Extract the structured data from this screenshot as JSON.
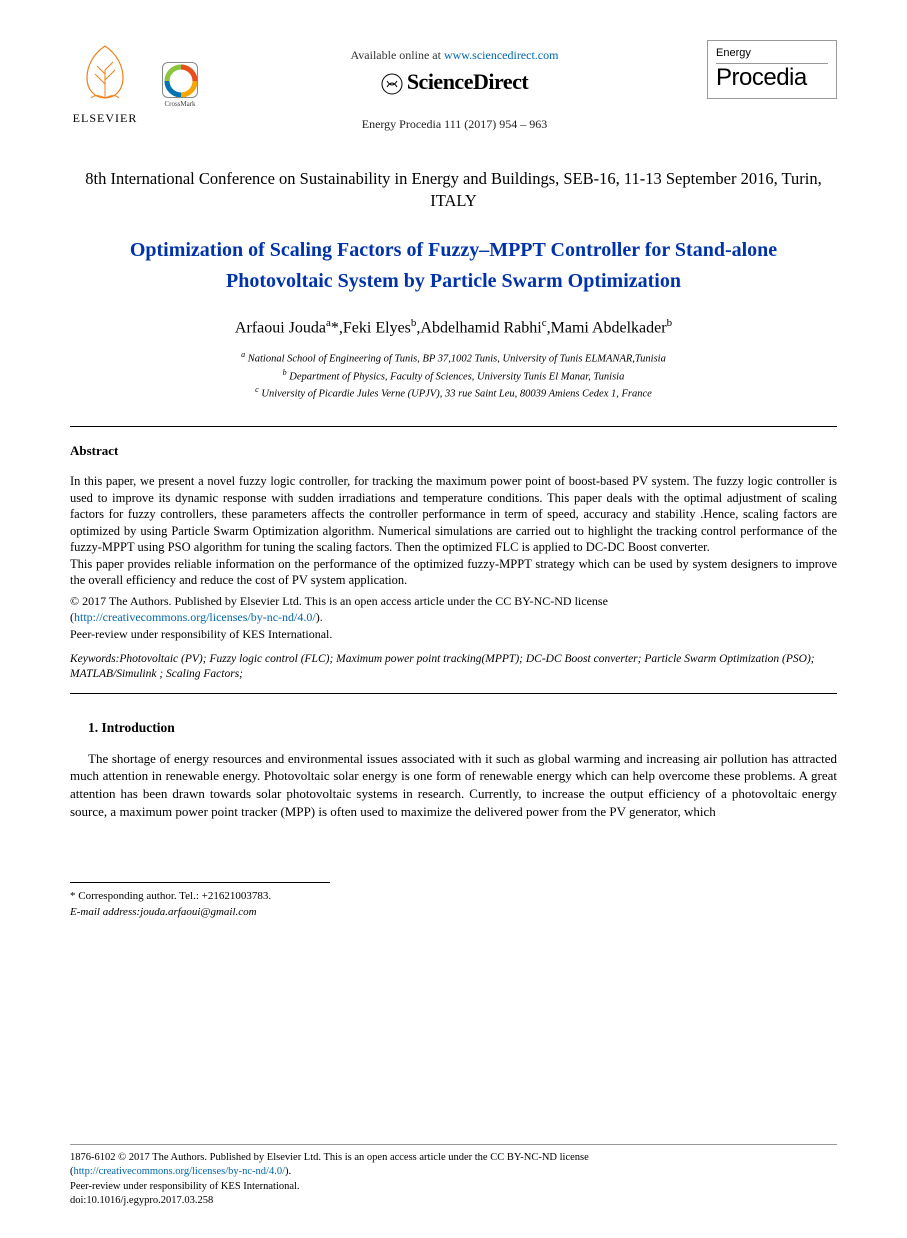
{
  "header": {
    "elsevier_label": "ELSEVIER",
    "crossmark_label": "CrossMark",
    "available_prefix": "Available online at ",
    "available_link": "www.sciencedirect.com",
    "sciencedirect": "ScienceDirect",
    "journal_ref": "Energy Procedia 111 (2017) 954 – 963",
    "right_small": "Energy",
    "right_large": "Procedia"
  },
  "conference": "8th International Conference on Sustainability in Energy and Buildings, SEB-16, 11-13 September 2016, Turin, ITALY",
  "title_line1": "Optimization of Scaling Factors of Fuzzy–MPPT Controller for Stand-alone",
  "title_line2": "Photovoltaic System by Particle Swarm Optimization",
  "authors": {
    "a1_name": "Arfaoui Jouda",
    "a1_sup": "a",
    "a1_mark": "*",
    "a2_name": "Feki Elyes",
    "a2_sup": "b",
    "a3_name": "Abdelhamid Rabhi",
    "a3_sup": "c",
    "a4_name": "Mami Abdelkader",
    "a4_sup": "b"
  },
  "affiliations": {
    "a": "National School of Engineering of Tunis, BP 37,1002 Tunis, University of Tunis ELMANAR,Tunisia",
    "b": "Department of Physics, Faculty of Sciences, University Tunis El Manar, Tunisia",
    "c": "University of Picardie Jules Verne (UPJV), 33 rue Saint Leu, 80039 Amiens Cedex 1, France"
  },
  "abstract_head": "Abstract",
  "abstract_body": "In this paper, we present a novel fuzzy logic controller, for tracking the maximum power point of boost-based PV system. The fuzzy logic controller is used to improve its dynamic response with sudden irradiations and temperature conditions. This paper deals with the optimal adjustment of scaling factors for fuzzy controllers, these parameters affects the controller performance in term of speed, accuracy and stability .Hence, scaling factors are optimized by using Particle Swarm Optimization algorithm. Numerical simulations are carried out to highlight the tracking control performance of the fuzzy-MPPT using PSO algorithm for tuning the scaling factors. Then the optimized FLC is applied to DC-DC Boost converter.\nThis paper provides reliable information on the performance of the optimized fuzzy-MPPT strategy which can be used by system designers to improve the overall efficiency and reduce the cost of PV system application.",
  "copyright_line": "© 2017 The Authors. Published by Elsevier Ltd. This is an open access article under the CC BY-NC-ND license",
  "copyright_link": "http://creativecommons.org/licenses/by-nc-nd/4.0/",
  "peer_review": "Peer-review under responsibility of KES International.",
  "keywords": "Keywords:Photovoltaic (PV); Fuzzy logic control (FLC); Maximum power point tracking(MPPT); DC-DC Boost converter; Particle Swarm Optimization (PSO); MATLAB/Simulink ; Scaling Factors;",
  "section1_head": "1. Introduction",
  "intro_body": "The shortage of energy resources and environmental issues associated with it such as global warming and increasing air pollution has attracted much attention in renewable energy. Photovoltaic solar energy is one form of renewable energy which can help overcome these problems. A great attention has been drawn towards solar photovoltaic systems in research. Currently, to increase the output efficiency of a photovoltaic energy source, a maximum power point tracker (MPP) is often used to maximize the delivered power from the PV generator, which",
  "corresponding": {
    "line1": "* Corresponding author. Tel.:  +21621003783.",
    "line2_label": "E-mail address:",
    "line2_value": "jouda.arfaoui@gmail.com"
  },
  "footer": {
    "line1": "1876-6102 © 2017 The Authors. Published by Elsevier Ltd. This is an open access article under the CC BY-NC-ND license",
    "link": "http://creativecommons.org/licenses/by-nc-nd/4.0/",
    "line2": "Peer-review under responsibility of KES International.",
    "doi": "doi:10.1016/j.egypro.2017.03.258"
  },
  "colors": {
    "title_color": "#0033aa",
    "link_color": "#0066aa",
    "text_color": "#000000",
    "bg": "#ffffff",
    "elsevier_orange": "#ef7f1a",
    "crossmark_colors": [
      "#e84e1b",
      "#f7a600",
      "#0073b0",
      "#8cc63f"
    ]
  }
}
